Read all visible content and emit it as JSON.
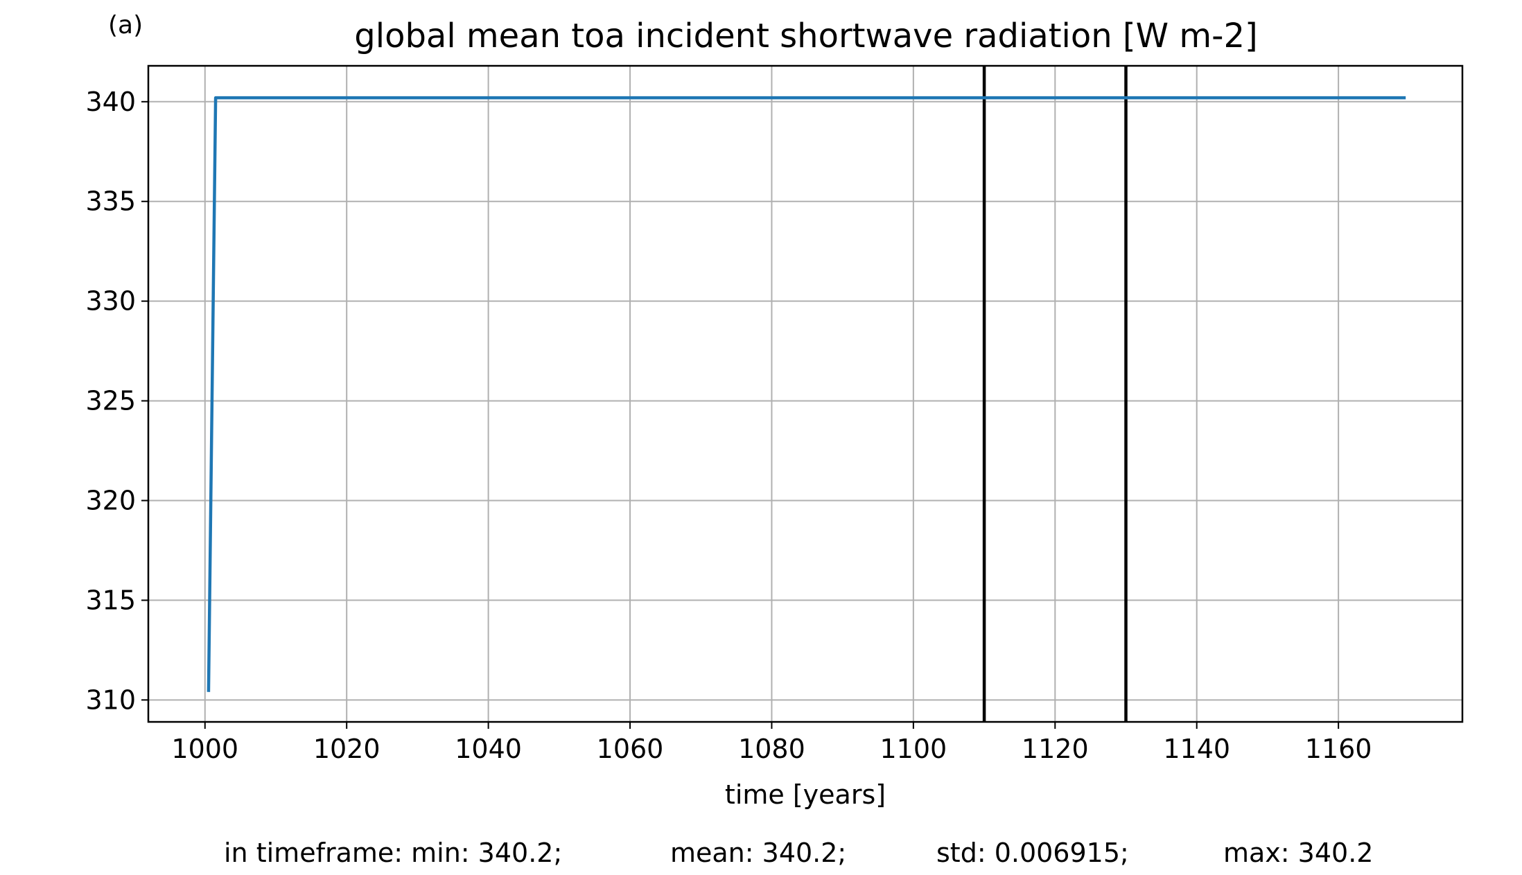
{
  "chart_data": {
    "type": "line",
    "panel_label": "(a)",
    "title": "global mean toa incident shortwave radiation [W m-2]",
    "xlabel": "time [years]",
    "ylabel": "",
    "xlim": [
      992,
      1177.5
    ],
    "ylim": [
      308.9,
      341.8
    ],
    "xticks": [
      1000,
      1020,
      1040,
      1060,
      1080,
      1100,
      1120,
      1140,
      1160
    ],
    "yticks": [
      310,
      315,
      320,
      325,
      330,
      335,
      340
    ],
    "grid": true,
    "series": [
      {
        "color": "#1f77b4",
        "x": [
          1000.5,
          1001.5,
          1010,
          1020,
          1030,
          1040,
          1050,
          1060,
          1070,
          1080,
          1090,
          1100,
          1110,
          1120,
          1130,
          1140,
          1150,
          1160,
          1169.5
        ],
        "y": [
          310.4,
          340.2,
          340.2,
          340.2,
          340.2,
          340.2,
          340.2,
          340.2,
          340.2,
          340.2,
          340.2,
          340.2,
          340.2,
          340.2,
          340.2,
          340.2,
          340.2,
          340.2,
          340.2
        ]
      }
    ],
    "vlines": [
      1110,
      1130
    ],
    "vline_color": "#000000",
    "stats": [
      "in timeframe: min: 340.2;",
      "mean: 340.2;",
      "std: 0.006915;",
      "max: 340.2"
    ]
  }
}
